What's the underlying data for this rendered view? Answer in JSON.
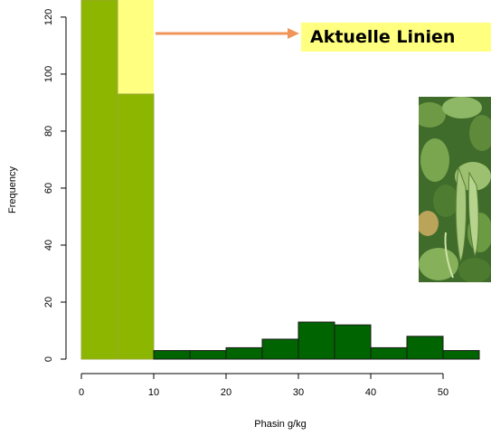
{
  "chart_data": {
    "type": "bar",
    "title": "",
    "xlabel": "Phasin g/kg",
    "ylabel": "Frequency",
    "bin_width": 5,
    "bins": [
      {
        "x0": 0,
        "x1": 5,
        "value": 126,
        "group": "highlight"
      },
      {
        "x0": 5,
        "x1": 10,
        "value": 93,
        "group": "highlight"
      },
      {
        "x0": 10,
        "x1": 15,
        "value": 3,
        "group": "base"
      },
      {
        "x0": 15,
        "x1": 20,
        "value": 3,
        "group": "base"
      },
      {
        "x0": 20,
        "x1": 25,
        "value": 4,
        "group": "base"
      },
      {
        "x0": 25,
        "x1": 30,
        "value": 7,
        "group": "base"
      },
      {
        "x0": 30,
        "x1": 35,
        "value": 13,
        "group": "base"
      },
      {
        "x0": 35,
        "x1": 40,
        "value": 12,
        "group": "base"
      },
      {
        "x0": 40,
        "x1": 45,
        "value": 4,
        "group": "base"
      },
      {
        "x0": 45,
        "x1": 50,
        "value": 8,
        "group": "base"
      },
      {
        "x0": 50,
        "x1": 55,
        "value": 3,
        "group": "base"
      }
    ],
    "highlight_band": {
      "x0": 0,
      "x1": 10
    },
    "xticks": [
      0,
      10,
      20,
      30,
      40,
      50
    ],
    "yticks": [
      0,
      20,
      40,
      60,
      80,
      100,
      120
    ],
    "xlim": [
      0,
      55
    ],
    "ylim": [
      0,
      126
    ],
    "grid": false,
    "legend": "none"
  },
  "annotation": {
    "text": "Aktuelle Linien",
    "arrow_color": "#f0955a",
    "background": "#ffff80"
  },
  "photo": {
    "icon": "bean-pods-photo"
  },
  "colors": {
    "highlight_fill": "#8db600",
    "highlight_band": "#ffff80",
    "base_fill": "#006400",
    "bar_stroke": "#1a1a1a",
    "axis": "#000000"
  }
}
